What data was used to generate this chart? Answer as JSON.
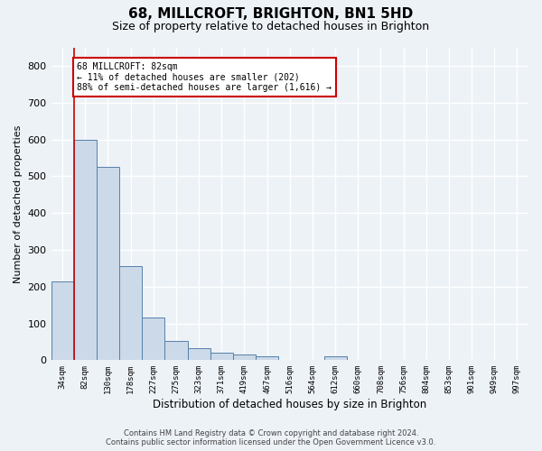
{
  "title_line1": "68, MILLCROFT, BRIGHTON, BN1 5HD",
  "title_line2": "Size of property relative to detached houses in Brighton",
  "xlabel": "Distribution of detached houses by size in Brighton",
  "ylabel": "Number of detached properties",
  "bar_labels": [
    "34sqm",
    "82sqm",
    "130sqm",
    "178sqm",
    "227sqm",
    "275sqm",
    "323sqm",
    "371sqm",
    "419sqm",
    "467sqm",
    "516sqm",
    "564sqm",
    "612sqm",
    "660sqm",
    "708sqm",
    "756sqm",
    "804sqm",
    "853sqm",
    "901sqm",
    "949sqm",
    "997sqm"
  ],
  "bar_values": [
    215,
    600,
    525,
    255,
    117,
    53,
    32,
    21,
    16,
    11,
    0,
    0,
    10,
    0,
    0,
    0,
    0,
    0,
    0,
    0,
    0
  ],
  "bar_color": "#ccd9e8",
  "bar_edge_color": "#5580aa",
  "vline_x": 0.5,
  "annotation_title": "68 MILLCROFT: 82sqm",
  "annotation_line1": "← 11% of detached houses are smaller (202)",
  "annotation_line2": "88% of semi-detached houses are larger (1,616) →",
  "annotation_box_color": "#ffffff",
  "annotation_box_edge_color": "#cc0000",
  "vline_color": "#cc0000",
  "ylim": [
    0,
    850
  ],
  "yticks": [
    0,
    100,
    200,
    300,
    400,
    500,
    600,
    700,
    800
  ],
  "footer_line1": "Contains HM Land Registry data © Crown copyright and database right 2024.",
  "footer_line2": "Contains public sector information licensed under the Open Government Licence v3.0.",
  "bg_color": "#edf2f7",
  "plot_bg_color": "#edf2f7",
  "grid_color": "#ffffff"
}
